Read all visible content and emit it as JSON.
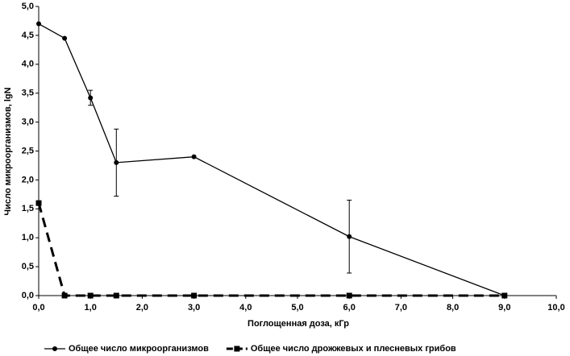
{
  "chart_data": {
    "type": "line",
    "x_label": "Поглощенная доза, кГр",
    "y_label": "Число микроорганизмов, lgN",
    "x": [
      0,
      0.5,
      1,
      1.5,
      3,
      6,
      9
    ],
    "series": [
      {
        "name": "Общее число микроорганизмов",
        "color": "#000000",
        "marker": "circle",
        "dashed": false,
        "values": [
          4.7,
          4.45,
          3.42,
          2.3,
          2.4,
          1.02,
          0
        ],
        "errors": [
          null,
          null,
          0.13,
          0.58,
          null,
          0.63,
          null
        ]
      },
      {
        "name": "Общее число дрожжевых и плесневых грибов",
        "color": "#000000",
        "marker": "square",
        "dashed": true,
        "values": [
          1.6,
          0,
          0,
          0,
          0,
          0,
          0
        ]
      }
    ],
    "xlim": [
      0,
      10
    ],
    "ylim": [
      0,
      5
    ],
    "xticks": [
      {
        "value": 0,
        "label": "0,0"
      },
      {
        "value": 1,
        "label": "1,0"
      },
      {
        "value": 2,
        "label": "2,0"
      },
      {
        "value": 3,
        "label": "3,0"
      },
      {
        "value": 4,
        "label": "4,0"
      },
      {
        "value": 5,
        "label": "5,0"
      },
      {
        "value": 6,
        "label": "6,0"
      },
      {
        "value": 7,
        "label": "7,0"
      },
      {
        "value": 8,
        "label": "8,0"
      },
      {
        "value": 9,
        "label": "9,0"
      },
      {
        "value": 10,
        "label": "10,0"
      }
    ],
    "yticks": [
      {
        "value": 0,
        "label": "0,0"
      },
      {
        "value": 0.5,
        "label": "0,5"
      },
      {
        "value": 1,
        "label": "1,0"
      },
      {
        "value": 1.5,
        "label": "1,5"
      },
      {
        "value": 2,
        "label": "2,0"
      },
      {
        "value": 2.5,
        "label": "2,5"
      },
      {
        "value": 3,
        "label": "3,0"
      },
      {
        "value": 3.5,
        "label": "3,5"
      },
      {
        "value": 4,
        "label": "4,0"
      },
      {
        "value": 4.5,
        "label": "4,5"
      },
      {
        "value": 5,
        "label": "5,0"
      }
    ],
    "grid": false,
    "legend": "bottom"
  }
}
